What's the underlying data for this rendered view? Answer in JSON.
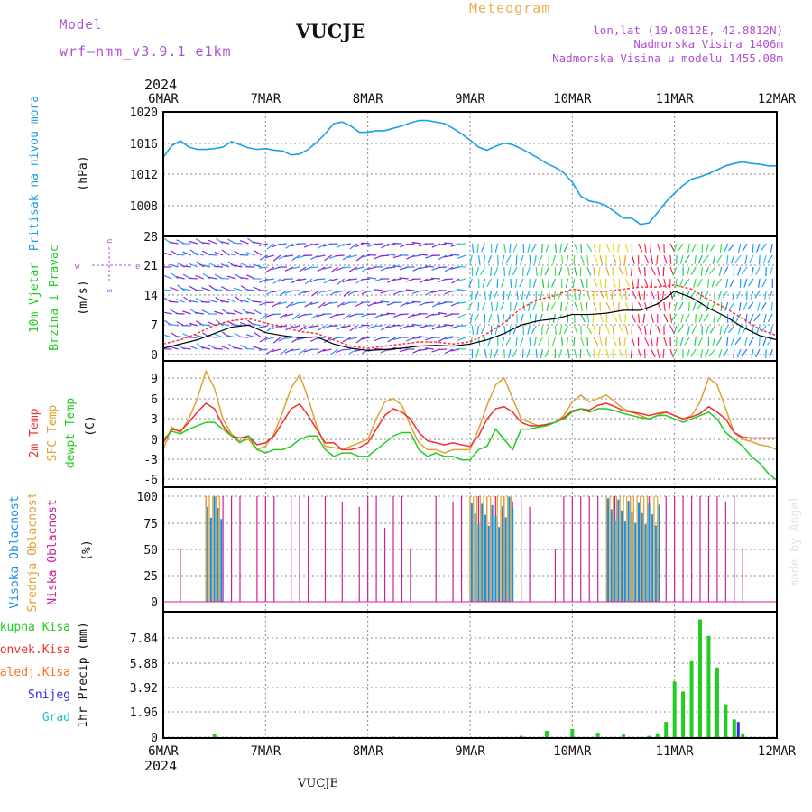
{
  "header": {
    "model_label": "Model",
    "model_name": "wrf—nmm_v3.9.1  e1km",
    "station_title": "VUCJE",
    "meteogram_label": "Meteogram",
    "lonlat": "lon,lat (19.0812E, 42.8812N)",
    "altitude": "Nadmorska Visina 1406m",
    "model_altitude": "Nadmorska Visina u modelu 1455.08m",
    "footer_station": "VUCJE",
    "made_by": "made by Angel"
  },
  "colors": {
    "pressure": "#1aa0e8",
    "wind_speed": "#000000",
    "wind_gust": "#ff3030",
    "temp_2m": "#ee3030",
    "temp_sfc": "#e0a030",
    "dewpt": "#22cc22",
    "cloud_high": "#1a8fe0",
    "cloud_mid": "#e0a030",
    "cloud_low": "#cc2299",
    "precip_total": "#22cc22",
    "precip_conv": "#ee3030",
    "precip_frozen": "#ff7020",
    "snow": "#3030dd",
    "hail": "#20c0c0",
    "header_purple": "#b050d0",
    "meteogram_orange": "#e8b050"
  },
  "x_axis": {
    "year": "2024",
    "ticks": [
      "6MAR",
      "7MAR",
      "8MAR",
      "9MAR",
      "10MAR",
      "11MAR",
      "12MAR"
    ],
    "hours_total": 144
  },
  "panels": {
    "pressure": {
      "ylabel_name": "Pritisak na nivou mora",
      "ylabel_unit": "(hPa)",
      "ticks": [
        "1020",
        "1016",
        "1012",
        "1008"
      ]
    },
    "wind": {
      "ylabel_name_1": "10m Vjetar",
      "ylabel_name_2": "Brzina i Pravac",
      "ylabel_unit": "(m/s)",
      "ticks": [
        "28",
        "21",
        "14",
        "7",
        "0"
      ],
      "compass_w": "w",
      "compass_s": "s",
      "compass_n": "n",
      "compass_e": "e"
    },
    "temp": {
      "ylabel_2m": "2m Temp",
      "ylabel_sfc": "SFC Temp",
      "ylabel_dew": "dewpt Temp",
      "ylabel_unit": "(C)",
      "ticks": [
        "9",
        "6",
        "3",
        "0",
        "-3",
        "-6"
      ]
    },
    "cloud": {
      "ylabel_high": "Visoka Oblacnost",
      "ylabel_mid": "Srednja Oblacnost",
      "ylabel_low": "Niska Oblacnost",
      "ylabel_unit": "(%)",
      "ticks": [
        "100",
        "75",
        "50",
        "25",
        "0"
      ]
    },
    "precip": {
      "ylabel": "1hr Precip (mm)",
      "ticks": [
        "7.84",
        "5.88",
        "3.92",
        "1.96",
        "0"
      ],
      "legend": [
        "Ukupna Kisa",
        "Konvek.Kisa",
        "Zaledj.Kisa",
        "Snijeg",
        "Grad"
      ]
    }
  },
  "chart_data": [
    {
      "type": "line",
      "title": "Pritisak na nivou mora (hPa)",
      "ylim": [
        1005,
        1020
      ],
      "x_hours": [
        0,
        2,
        4,
        6,
        8,
        10,
        12,
        14,
        16,
        18,
        20,
        22,
        24,
        26,
        28,
        30,
        32,
        34,
        36,
        38,
        40,
        42,
        44,
        46,
        48,
        50,
        52,
        54,
        56,
        58,
        60,
        62,
        64,
        66,
        68,
        70,
        72,
        74,
        76,
        78,
        80,
        82,
        84,
        86,
        88,
        90,
        92,
        94,
        96,
        98,
        100,
        102,
        104,
        106,
        108,
        110,
        112,
        114,
        116,
        118,
        120,
        122,
        124,
        126,
        128,
        130,
        132,
        134,
        136,
        138,
        140,
        142,
        144
      ],
      "series": [
        {
          "name": "pressure",
          "values": [
            1014.2,
            1015.7,
            1016.3,
            1015.5,
            1015.2,
            1015.2,
            1015.3,
            1015.5,
            1016.2,
            1015.8,
            1015.4,
            1015.2,
            1015.3,
            1015.1,
            1015.0,
            1014.5,
            1014.6,
            1015.2,
            1016.1,
            1017.2,
            1018.5,
            1018.7,
            1018.2,
            1017.4,
            1017.4,
            1017.6,
            1017.6,
            1017.9,
            1018.2,
            1018.6,
            1018.9,
            1018.9,
            1018.7,
            1018.5,
            1017.9,
            1017.2,
            1016.4,
            1015.5,
            1015.1,
            1015.6,
            1016.0,
            1015.8,
            1015.3,
            1014.7,
            1014.1,
            1013.4,
            1012.9,
            1012.2,
            1011.0,
            1009.2,
            1008.6,
            1008.4,
            1008.0,
            1007.2,
            1006.4,
            1006.4,
            1005.6,
            1005.8,
            1007.1,
            1008.5,
            1009.6,
            1010.6,
            1011.4,
            1011.7,
            1012.1,
            1012.6,
            1013.1,
            1013.4,
            1013.6,
            1013.4,
            1013.3,
            1013.1,
            1013.1
          ]
        }
      ]
    },
    {
      "type": "line",
      "title": "10m Vjetar Brzina i Pravac (m/s)",
      "ylim": [
        0,
        28
      ],
      "x_hours": [
        0,
        4,
        8,
        12,
        16,
        20,
        24,
        28,
        32,
        36,
        40,
        44,
        48,
        52,
        56,
        60,
        64,
        68,
        72,
        76,
        80,
        84,
        88,
        92,
        96,
        100,
        104,
        108,
        112,
        116,
        120,
        124,
        128,
        132,
        136,
        140,
        144
      ],
      "series": [
        {
          "name": "speed",
          "values": [
            1.5,
            2.5,
            3.5,
            5.0,
            6.5,
            7.0,
            5.2,
            4.5,
            4.0,
            4.2,
            2.5,
            1.5,
            1.0,
            1.2,
            1.5,
            2.0,
            2.2,
            2.0,
            2.5,
            3.5,
            5.0,
            7.0,
            8.0,
            8.5,
            9.5,
            9.5,
            9.8,
            10.5,
            10.5,
            12.0,
            15.0,
            13.5,
            11.0,
            9.0,
            6.5,
            4.5,
            3.5
          ]
        },
        {
          "name": "gust",
          "values": [
            2.5,
            3.5,
            5.0,
            7.0,
            8.0,
            8.5,
            7.5,
            6.5,
            5.5,
            5.0,
            3.5,
            2.0,
            1.5,
            2.0,
            2.5,
            3.0,
            3.0,
            2.5,
            3.0,
            5.0,
            7.5,
            11.0,
            13.0,
            14.0,
            15.5,
            15.0,
            15.0,
            15.5,
            16.0,
            16.0,
            16.5,
            15.5,
            13.0,
            11.0,
            8.5,
            6.0,
            4.5
          ]
        }
      ]
    },
    {
      "type": "line",
      "title": "2m Temp / SFC Temp / dewpt Temp (C)",
      "ylim": [
        -7,
        11
      ],
      "x_hours": [
        0,
        2,
        4,
        6,
        8,
        10,
        12,
        14,
        16,
        18,
        20,
        22,
        24,
        26,
        28,
        30,
        32,
        34,
        36,
        38,
        40,
        42,
        44,
        46,
        48,
        50,
        52,
        54,
        56,
        58,
        60,
        62,
        64,
        66,
        68,
        70,
        72,
        74,
        76,
        78,
        80,
        82,
        84,
        86,
        88,
        90,
        92,
        94,
        96,
        98,
        100,
        102,
        104,
        106,
        108,
        110,
        112,
        114,
        116,
        118,
        120,
        122,
        124,
        126,
        128,
        130,
        132,
        134,
        136,
        138,
        140,
        142,
        144
      ],
      "series": [
        {
          "name": "2m",
          "values": [
            -0.5,
            1.5,
            1.2,
            2.5,
            4.0,
            5.3,
            4.5,
            2.0,
            0.5,
            0.2,
            0.5,
            -0.8,
            -0.5,
            0.5,
            2.5,
            4.5,
            5.2,
            3.5,
            1.5,
            -0.5,
            -0.5,
            -1.5,
            -1.5,
            -1.2,
            -0.5,
            1.5,
            3.5,
            4.5,
            4.0,
            3.0,
            1.0,
            -0.2,
            -0.5,
            -0.8,
            -0.5,
            -0.8,
            -1.0,
            0.5,
            3.0,
            4.5,
            4.8,
            4.0,
            2.5,
            2.0,
            2.0,
            2.2,
            2.5,
            3.2,
            4.2,
            4.5,
            4.3,
            5.0,
            5.3,
            4.8,
            4.2,
            4.0,
            3.8,
            3.5,
            3.8,
            4.0,
            3.5,
            3.0,
            3.3,
            3.8,
            4.8,
            4.0,
            3.0,
            1.0,
            0.3,
            0.2,
            0.2,
            0.2,
            0.2
          ]
        },
        {
          "name": "SFC",
          "values": [
            -1.5,
            1.8,
            1.0,
            3.0,
            6.0,
            10.0,
            7.5,
            3.0,
            0.8,
            -0.3,
            0.0,
            -1.5,
            -1.0,
            0.8,
            4.0,
            7.5,
            9.5,
            6.0,
            2.0,
            -1.0,
            -1.2,
            -1.5,
            -1.0,
            -0.5,
            0.0,
            3.0,
            5.5,
            6.0,
            5.0,
            2.0,
            -0.5,
            -1.5,
            -1.5,
            -2.0,
            -1.5,
            -1.5,
            -1.5,
            1.5,
            5.0,
            8.0,
            9.0,
            6.0,
            3.0,
            2.5,
            2.0,
            2.0,
            2.5,
            3.5,
            5.5,
            6.5,
            5.5,
            6.0,
            6.5,
            5.5,
            4.5,
            4.0,
            3.5,
            3.0,
            3.5,
            4.0,
            3.5,
            3.0,
            3.5,
            5.5,
            9.0,
            8.0,
            4.5,
            1.0,
            0.0,
            -0.3,
            -0.8,
            -1.0,
            -1.5
          ]
        },
        {
          "name": "dewpt",
          "values": [
            0.0,
            1.2,
            0.8,
            1.5,
            2.0,
            2.5,
            2.5,
            1.5,
            0.5,
            -0.5,
            0.5,
            -1.5,
            -2.0,
            -1.5,
            -1.5,
            -1.0,
            0.0,
            0.5,
            0.5,
            -1.5,
            -2.5,
            -2.0,
            -2.0,
            -2.5,
            -2.5,
            -1.5,
            -0.5,
            0.5,
            1.0,
            1.0,
            -1.5,
            -2.5,
            -2.0,
            -2.5,
            -2.5,
            -3.0,
            -3.0,
            -1.5,
            -1.0,
            1.5,
            0.0,
            -1.5,
            1.5,
            1.5,
            1.8,
            2.0,
            2.5,
            3.0,
            4.0,
            4.5,
            4.0,
            4.5,
            4.5,
            4.2,
            3.8,
            3.5,
            3.2,
            3.0,
            3.5,
            3.5,
            3.0,
            2.5,
            3.0,
            3.5,
            4.0,
            3.0,
            1.0,
            0.0,
            -1.0,
            -2.5,
            -3.5,
            -5.0,
            -6.0
          ]
        }
      ]
    },
    {
      "type": "bar",
      "title": "Visoka / Srednja / Niska Oblacnost (%)",
      "ylim": [
        0,
        100
      ],
      "x_hours": [
        0,
        2,
        4,
        6,
        8,
        10,
        12,
        14,
        16,
        18,
        20,
        22,
        24,
        26,
        28,
        30,
        32,
        34,
        36,
        38,
        40,
        42,
        44,
        46,
        48,
        50,
        52,
        54,
        56,
        58,
        60,
        62,
        64,
        66,
        68,
        70,
        72,
        74,
        76,
        78,
        80,
        82,
        84,
        86,
        88,
        90,
        92,
        94,
        96,
        98,
        100,
        102,
        104,
        106,
        108,
        110,
        112,
        114,
        116,
        118,
        120,
        122,
        124,
        126,
        128,
        130,
        132,
        134,
        136,
        138,
        140,
        142,
        144
      ],
      "series": [
        {
          "name": "high",
          "values": [
            0,
            0,
            0,
            0,
            0,
            0,
            0,
            0,
            0,
            0,
            0,
            0,
            0,
            0,
            0,
            0,
            0,
            0,
            0,
            0,
            0,
            0,
            0,
            0,
            0,
            0,
            0,
            0,
            0,
            0,
            0,
            0,
            0,
            0,
            0,
            0,
            0,
            0,
            0,
            0,
            0,
            0,
            0,
            0,
            0,
            0,
            0,
            0,
            0,
            0,
            0,
            0,
            0,
            0,
            0,
            0,
            0,
            0,
            0,
            0,
            0,
            0,
            0,
            0,
            0,
            0,
            0,
            0,
            0,
            0,
            0,
            0,
            0
          ]
        },
        {
          "name": "mid",
          "values": [
            0,
            0,
            0,
            0,
            0,
            0,
            0,
            0,
            0,
            0,
            0,
            0,
            0,
            0,
            0,
            0,
            0,
            0,
            0,
            0,
            0,
            0,
            0,
            0,
            0,
            0,
            0,
            0,
            0,
            0,
            0,
            0,
            0,
            0,
            0,
            0,
            0,
            0,
            0,
            0,
            0,
            0,
            0,
            0,
            0,
            0,
            0,
            0,
            0,
            0,
            0,
            0,
            0,
            0,
            0,
            0,
            0,
            0,
            0,
            0,
            0,
            0,
            0,
            0,
            0,
            0,
            0,
            0,
            0,
            0,
            0,
            0,
            0
          ]
        },
        {
          "name": "low",
          "values": [
            85,
            0,
            50,
            0,
            0,
            100,
            100,
            100,
            100,
            100,
            0,
            100,
            100,
            100,
            0,
            100,
            100,
            100,
            0,
            100,
            0,
            95,
            0,
            90,
            100,
            100,
            70,
            100,
            100,
            50,
            0,
            0,
            100,
            0,
            95,
            100,
            100,
            100,
            100,
            100,
            100,
            95,
            100,
            90,
            0,
            0,
            50,
            100,
            100,
            100,
            100,
            100,
            100,
            100,
            100,
            100,
            100,
            100,
            50,
            100,
            100,
            100,
            100,
            100,
            100,
            100,
            95,
            100,
            50,
            0,
            0,
            0,
            0
          ]
        }
      ]
    },
    {
      "type": "bar",
      "title": "1hr Precip (mm)",
      "ylim": [
        0,
        9.5
      ],
      "x_hours": [
        0,
        6,
        12,
        18,
        24,
        30,
        36,
        42,
        48,
        54,
        60,
        66,
        72,
        78,
        84,
        90,
        96,
        102,
        108,
        114,
        116,
        118,
        120,
        122,
        124,
        126,
        128,
        130,
        132,
        134,
        136,
        138,
        140,
        144
      ],
      "series": [
        {
          "name": "total",
          "values": [
            0,
            0,
            0.25,
            0,
            0,
            0,
            0,
            0,
            0,
            0.05,
            0,
            0,
            0,
            0,
            0.1,
            0.5,
            0.65,
            0.35,
            0.2,
            0.1,
            0.3,
            1.2,
            4.4,
            3.6,
            6.0,
            9.3,
            8.0,
            5.5,
            2.6,
            1.4,
            0.3,
            0,
            0,
            0
          ]
        },
        {
          "name": "snow",
          "values": [
            0,
            0,
            0,
            0,
            0,
            0,
            0,
            0,
            0,
            0,
            0,
            0,
            0,
            0,
            0,
            0,
            0,
            0,
            0,
            0,
            0,
            0,
            0,
            0,
            0,
            0,
            0,
            0,
            0,
            1.2,
            0,
            0,
            0,
            0
          ]
        }
      ]
    }
  ]
}
